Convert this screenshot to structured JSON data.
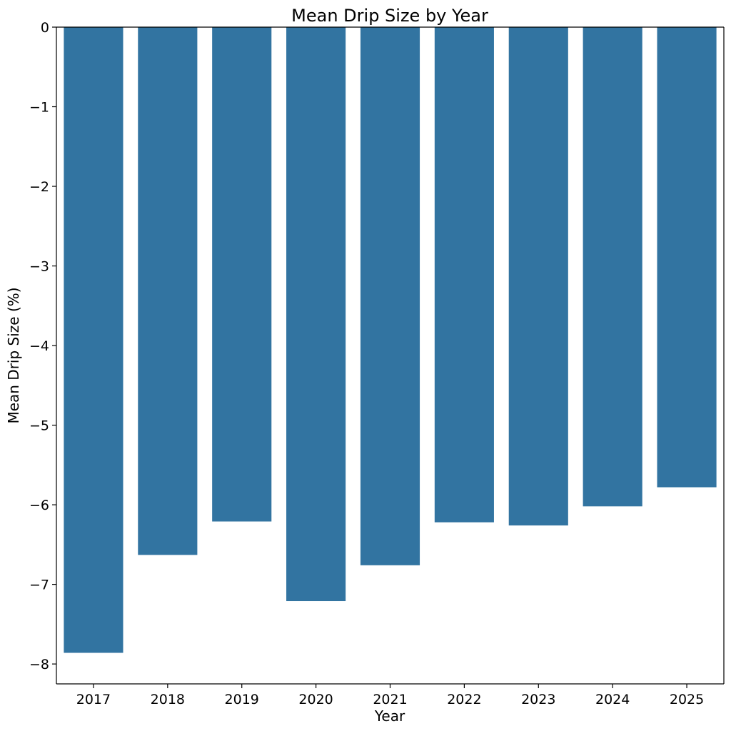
{
  "chart_data": {
    "type": "bar",
    "title": "Mean Drip Size by Year",
    "xlabel": "Year",
    "ylabel": "Mean Drip Size (%)",
    "categories": [
      "2017",
      "2018",
      "2019",
      "2020",
      "2021",
      "2022",
      "2023",
      "2024",
      "2025"
    ],
    "values": [
      -7.86,
      -6.63,
      -6.21,
      -7.21,
      -6.76,
      -6.22,
      -6.26,
      -6.02,
      -5.78
    ],
    "ylim": [
      -8.25,
      0
    ],
    "yticks": [
      0,
      -1,
      -2,
      -3,
      -4,
      -5,
      -6,
      -7,
      -8
    ],
    "ytick_labels": [
      "0",
      "−1",
      "−2",
      "−3",
      "−4",
      "−5",
      "−6",
      "−7",
      "−8"
    ],
    "bar_color": "#3274a1",
    "grid": false,
    "legend": "none"
  }
}
